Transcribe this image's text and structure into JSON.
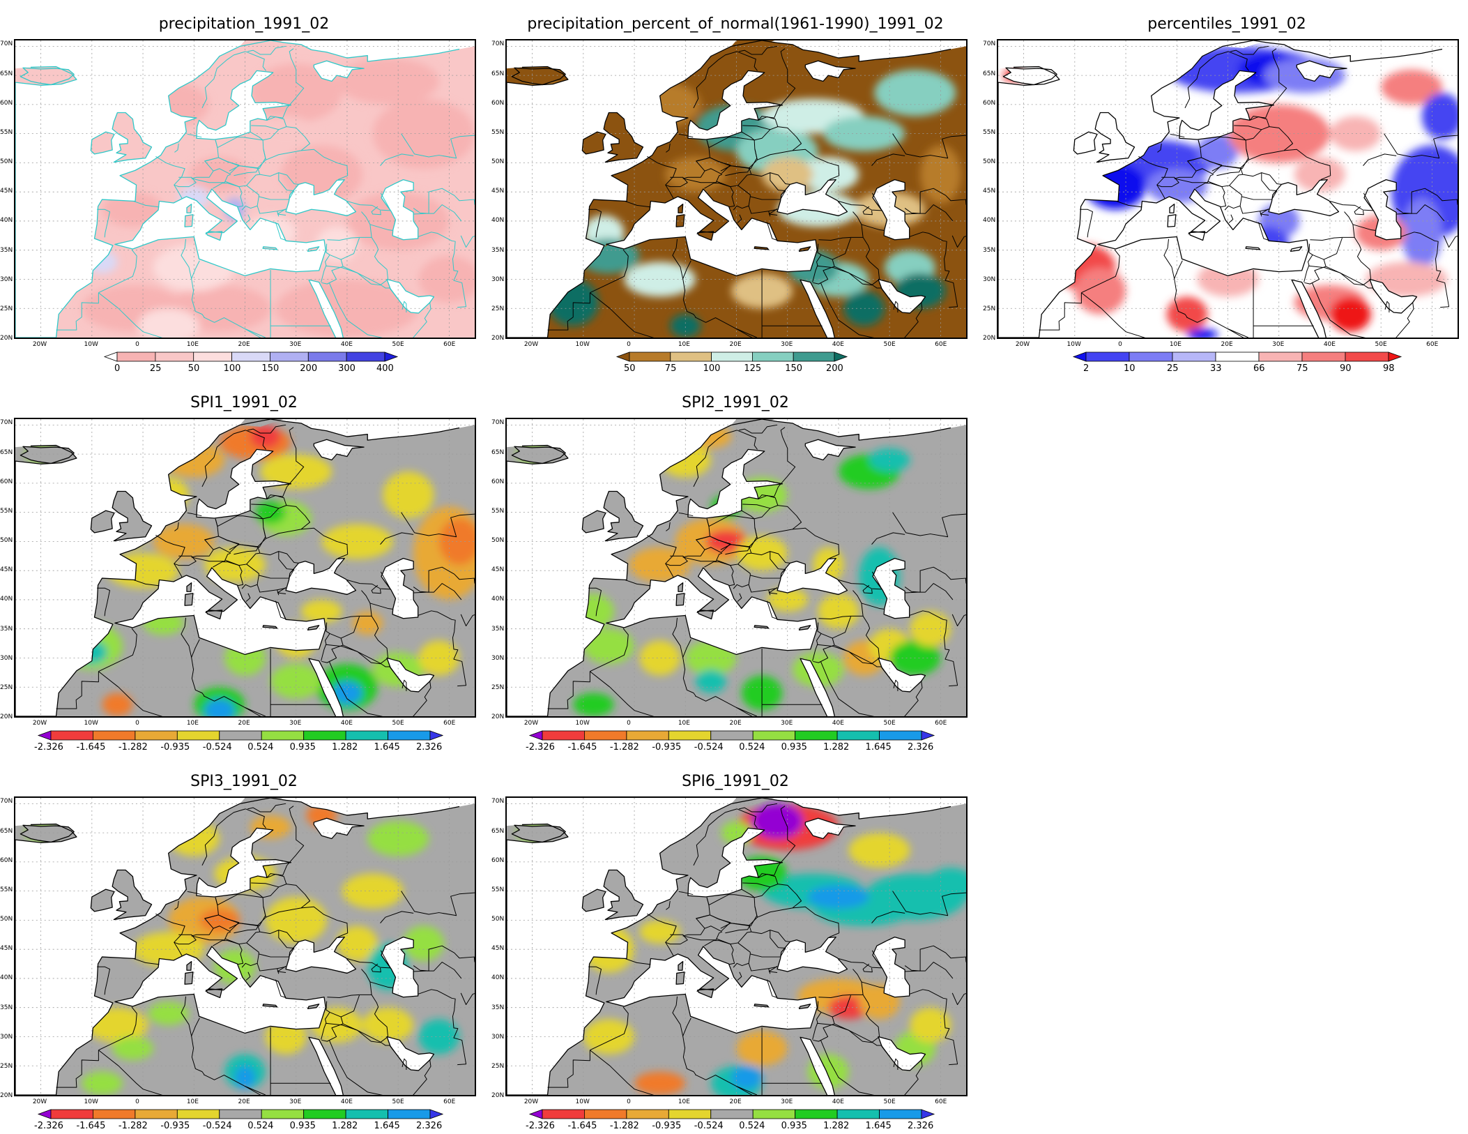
{
  "axes": {
    "lat_labels": [
      "70N",
      "65N",
      "60N",
      "55N",
      "50N",
      "45N",
      "40N",
      "35N",
      "30N",
      "25N",
      "20N"
    ],
    "lon_labels": [
      "20W",
      "10W",
      "0",
      "10E",
      "20E",
      "30E",
      "40E",
      "50E",
      "60E"
    ]
  },
  "panels": [
    {
      "id": "precipitation",
      "title": "precipitation_1991_02",
      "scheme": "precip",
      "colorbar": {
        "labels": [
          "0",
          "25",
          "50",
          "100",
          "150",
          "200",
          "300",
          "400"
        ],
        "colors": [
          "#ffffff",
          "#f7b3b3",
          "#f9c7c7",
          "#fcdede",
          "#d9d9f7",
          "#b0b0f2",
          "#7b7bea",
          "#4343e2",
          "#1f1fdc"
        ]
      }
    },
    {
      "id": "percent_normal",
      "title": "precipitation_percent_of_normal(1961-1990)_1991_02",
      "scheme": "pct",
      "colorbar": {
        "labels": [
          "50",
          "75",
          "100",
          "125",
          "150",
          "200"
        ],
        "colors": [
          "#8c5310",
          "#b77b2a",
          "#dfc083",
          "#cfeee6",
          "#86cfc0",
          "#3f9b8f",
          "#0f6e63"
        ]
      }
    },
    {
      "id": "percentiles",
      "title": "percentiles_1991_02",
      "scheme": "perc",
      "colorbar": {
        "labels": [
          "2",
          "10",
          "25",
          "33",
          "66",
          "75",
          "90",
          "98"
        ],
        "colors": [
          "#1111ee",
          "#4444f2",
          "#7d7df5",
          "#b7b7f8",
          "#ffffff",
          "#f8b4b4",
          "#f57f7f",
          "#f24a4a",
          "#ee1515"
        ]
      }
    },
    {
      "id": "spi1",
      "title": "SPI1_1991_02",
      "scheme": "spi",
      "colorbar": {
        "labels": [
          "-2.326",
          "-1.645",
          "-1.282",
          "-0.935",
          "-0.524",
          "0.524",
          "0.935",
          "1.282",
          "1.645",
          "2.326"
        ],
        "colors": [
          "#9400d3",
          "#f03c3c",
          "#f07a2a",
          "#e8a936",
          "#e4d52e",
          "#a8a8a8",
          "#95df42",
          "#22cc22",
          "#15bfae",
          "#189ae8",
          "#3636e8"
        ]
      }
    },
    {
      "id": "spi2",
      "title": "SPI2_1991_02",
      "scheme": "spi",
      "colorbar": {
        "labels": [
          "-2.326",
          "-1.645",
          "-1.282",
          "-0.935",
          "-0.524",
          "0.524",
          "0.935",
          "1.282",
          "1.645",
          "2.326"
        ],
        "colors": [
          "#9400d3",
          "#f03c3c",
          "#f07a2a",
          "#e8a936",
          "#e4d52e",
          "#a8a8a8",
          "#95df42",
          "#22cc22",
          "#15bfae",
          "#189ae8",
          "#3636e8"
        ]
      }
    },
    {
      "id": "spi3",
      "title": "SPI3_1991_02",
      "scheme": "spi",
      "colorbar": {
        "labels": [
          "-2.326",
          "-1.645",
          "-1.282",
          "-0.935",
          "-0.524",
          "0.524",
          "0.935",
          "1.282",
          "1.645",
          "2.326"
        ],
        "colors": [
          "#9400d3",
          "#f03c3c",
          "#f07a2a",
          "#e8a936",
          "#e4d52e",
          "#a8a8a8",
          "#95df42",
          "#22cc22",
          "#15bfae",
          "#189ae8",
          "#3636e8"
        ]
      }
    },
    {
      "id": "spi6",
      "title": "SPI6_1991_02",
      "scheme": "spi",
      "colorbar": {
        "labels": [
          "-2.326",
          "-1.645",
          "-1.282",
          "-0.935",
          "-0.524",
          "0.524",
          "0.935",
          "1.282",
          "1.645",
          "2.326"
        ],
        "colors": [
          "#9400d3",
          "#f03c3c",
          "#f07a2a",
          "#e8a936",
          "#e4d52e",
          "#a8a8a8",
          "#95df42",
          "#22cc22",
          "#15bfae",
          "#189ae8",
          "#3636e8"
        ]
      }
    }
  ]
}
